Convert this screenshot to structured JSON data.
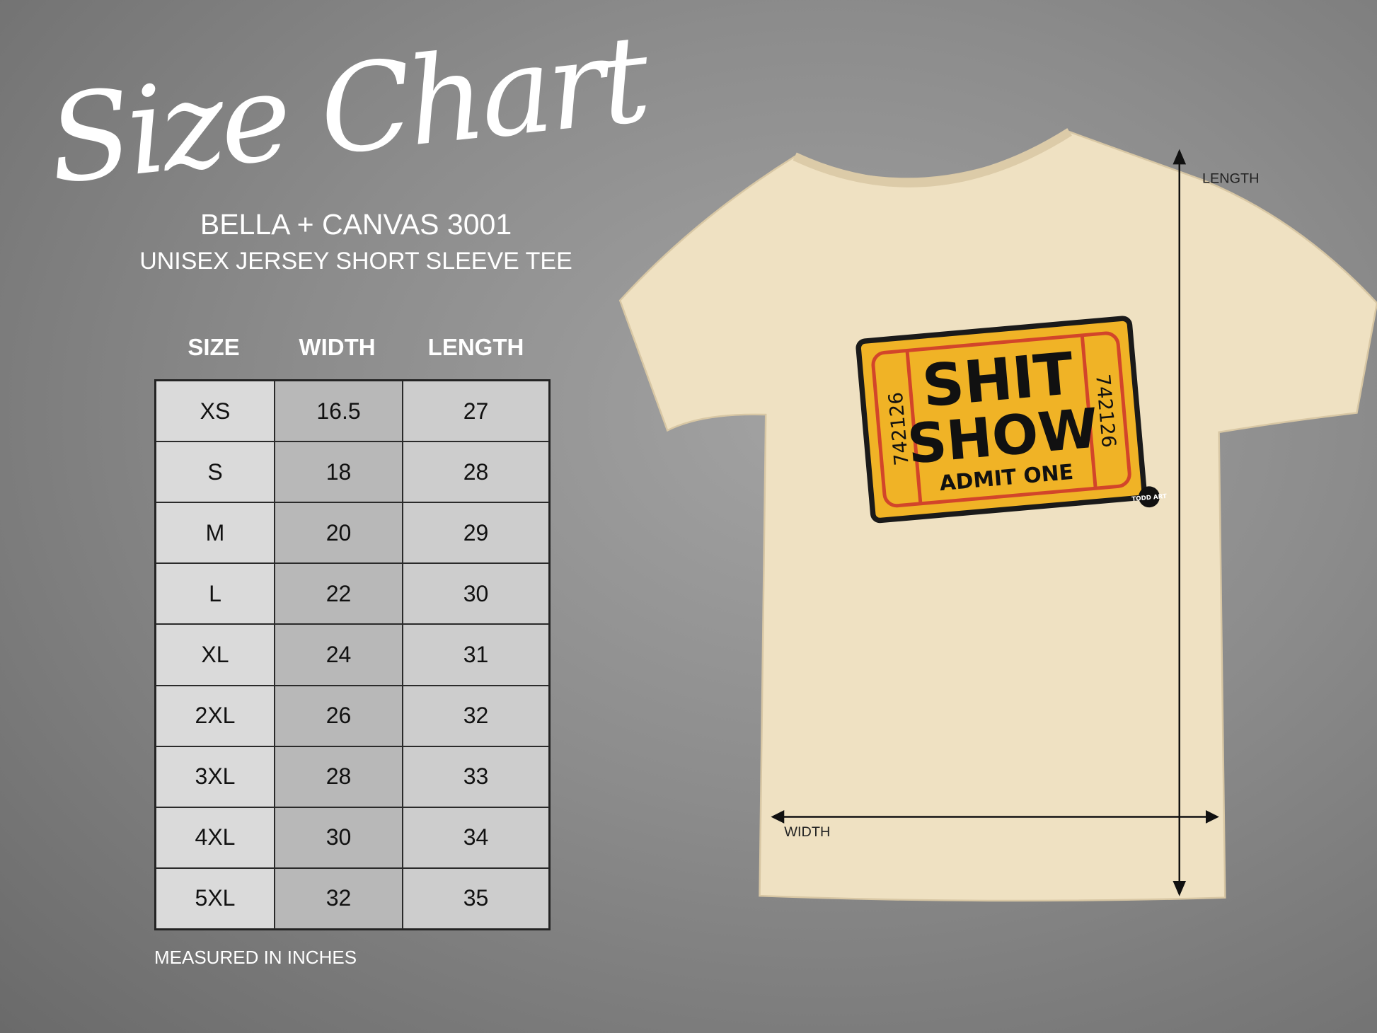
{
  "title": "Size Chart",
  "brand": "BELLA + CANVAS 3001",
  "product": "UNISEX JERSEY SHORT SLEEVE TEE",
  "table": {
    "headers": [
      "SIZE",
      "WIDTH",
      "LENGTH"
    ],
    "rows": [
      [
        "XS",
        "16.5",
        "27"
      ],
      [
        "S",
        "18",
        "28"
      ],
      [
        "M",
        "20",
        "29"
      ],
      [
        "L",
        "22",
        "30"
      ],
      [
        "XL",
        "24",
        "31"
      ],
      [
        "2XL",
        "26",
        "32"
      ],
      [
        "3XL",
        "28",
        "33"
      ],
      [
        "4XL",
        "30",
        "34"
      ],
      [
        "5XL",
        "32",
        "35"
      ]
    ]
  },
  "note": "MEASURED IN INCHES",
  "diagram": {
    "length_label": "LENGTH",
    "width_label": "WIDTH",
    "shirt_color": "#efe1c2"
  },
  "print": {
    "line1": "SHIT",
    "line2": "SHOW",
    "line3": "ADMIT ONE",
    "serial": "742126",
    "logo": "TODD ART",
    "ticket_color": "#f0b326",
    "border_color": "#d2452a"
  }
}
